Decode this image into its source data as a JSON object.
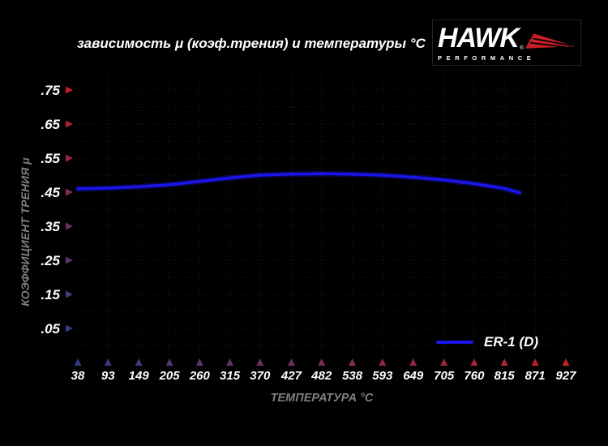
{
  "title": "зависимость μ (коэф.трения) и температуры °C",
  "logo": {
    "brand": "HAWK",
    "reg": "®",
    "sub": "PERFORMANCE",
    "wing_color": "#c81f27"
  },
  "chart_data": {
    "type": "line",
    "title": "зависимость μ (коэф.трения) и температуры °C",
    "xlabel": "ТЕМПЕРАТУРА °C",
    "ylabel": "КОЭФФИЦИЕНТ ТРЕНИЯ μ",
    "x_ticks": [
      38,
      93,
      149,
      205,
      260,
      315,
      370,
      427,
      482,
      538,
      593,
      649,
      705,
      760,
      815,
      871,
      927
    ],
    "y_tick_labels": [
      ".75",
      ".65",
      ".55",
      ".45",
      ".35",
      ".25",
      ".15",
      ".05"
    ],
    "y_tick_values": [
      0.75,
      0.65,
      0.55,
      0.45,
      0.35,
      0.25,
      0.15,
      0.05
    ],
    "xlim": [
      38,
      927
    ],
    "ylim": [
      -0.025,
      0.81
    ],
    "grid": "dotted",
    "legend": {
      "label": "ER-1 (D)",
      "position": "bottom-right"
    },
    "series": [
      {
        "name": "ER-1 (D)",
        "color": "#1b15ea",
        "x": [
          38,
          93,
          149,
          205,
          260,
          315,
          370,
          427,
          482,
          538,
          593,
          649,
          705,
          760,
          815,
          843
        ],
        "y": [
          0.46,
          0.462,
          0.466,
          0.472,
          0.482,
          0.492,
          0.5,
          0.503,
          0.504,
          0.503,
          0.5,
          0.494,
          0.486,
          0.475,
          0.461,
          0.448
        ]
      }
    ],
    "colors": {
      "hot": "#c41f27",
      "cold": "#333c86",
      "grid": "#212121",
      "tick_text": "#ffffff",
      "axis_title_text": "#7e7e7e",
      "background": "#000000"
    }
  }
}
